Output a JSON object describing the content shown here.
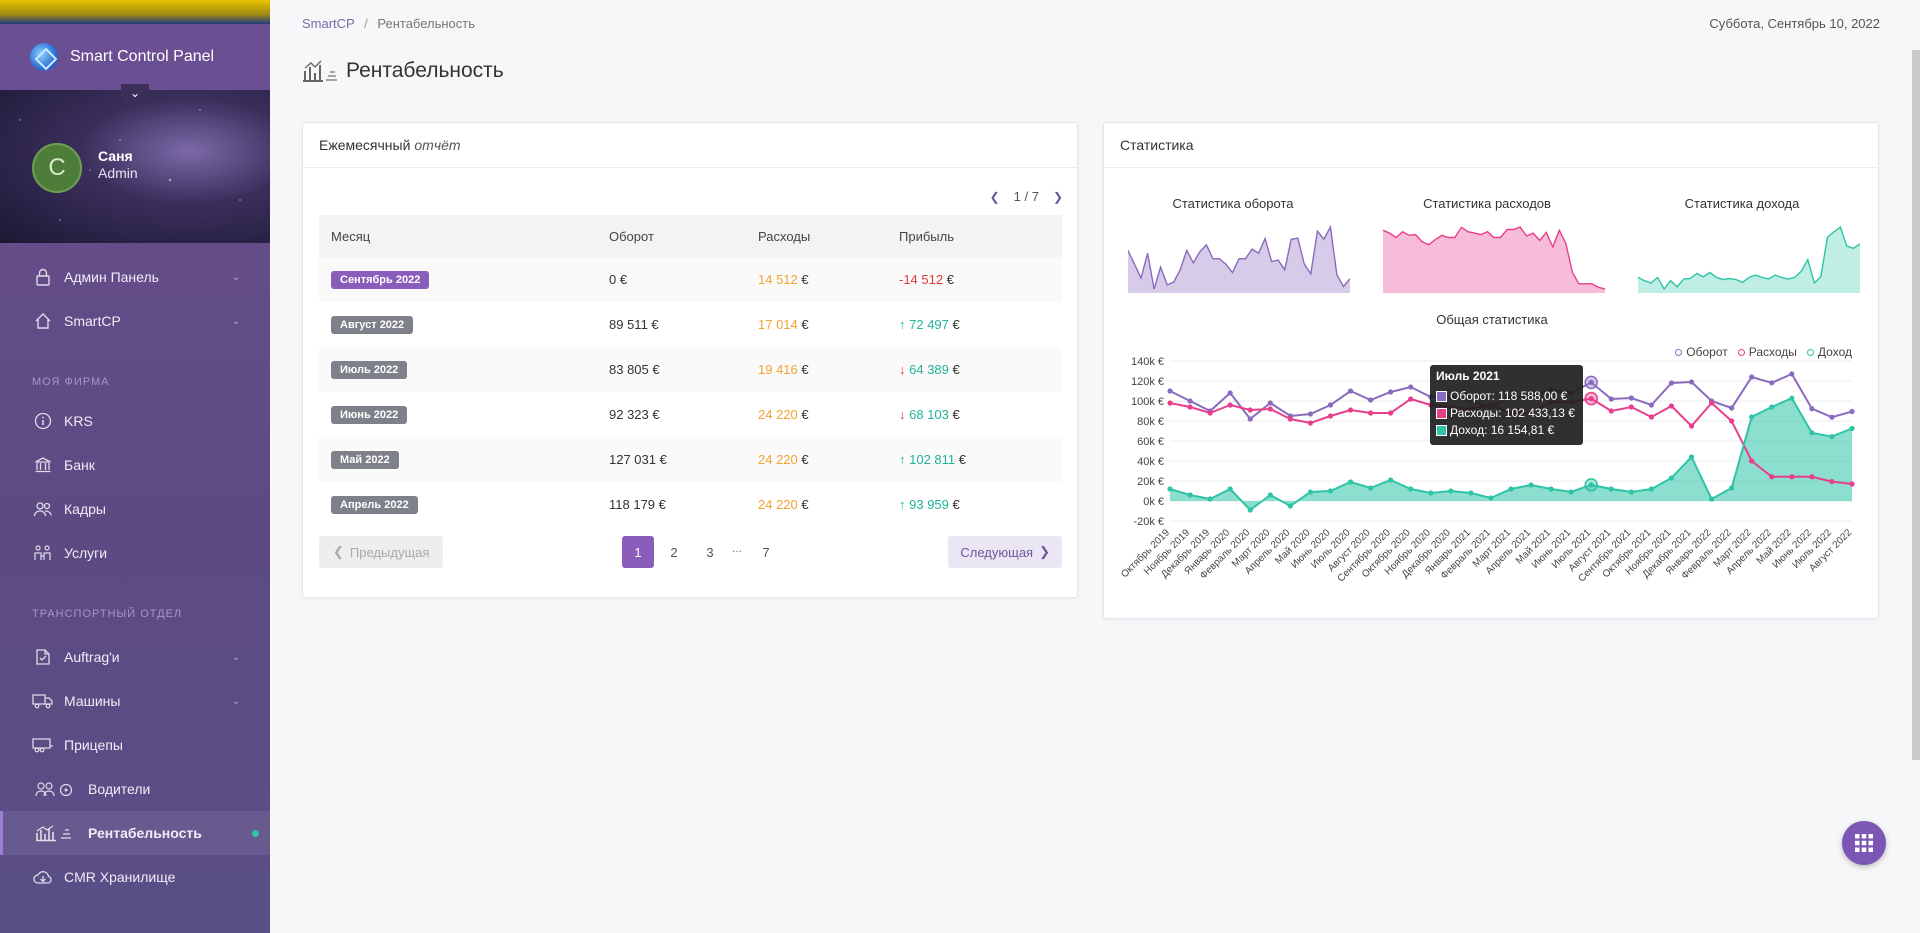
{
  "app": {
    "title": "Smart Control Panel"
  },
  "user": {
    "initial": "C",
    "name": "Саня",
    "role": "Admin"
  },
  "sidebar": {
    "items_top": [
      {
        "label": "Админ Панель",
        "icon": "lock-icon"
      },
      {
        "label": "SmartCP",
        "icon": "home-icon"
      }
    ],
    "section_company": "МОЯ ФИРМА",
    "items_company": [
      {
        "label": "KRS",
        "icon": "info-icon"
      },
      {
        "label": "Банк",
        "icon": "bank-icon"
      },
      {
        "label": "Кадры",
        "icon": "people-icon"
      },
      {
        "label": "Услуги",
        "icon": "services-icon"
      }
    ],
    "section_transport": "ТРАНСПОРТНЫЙ ОТДЕЛ",
    "items_transport": [
      {
        "label": "Auftrag'и",
        "icon": "document-icon"
      },
      {
        "label": "Машины",
        "icon": "truck-icon"
      },
      {
        "label": "Прицепы",
        "icon": "trailer-icon"
      },
      {
        "label": "Водители",
        "icon": "drivers-icon"
      },
      {
        "label": "Рентабельность",
        "icon": "profit-icon"
      },
      {
        "label": "CMR Хранилище",
        "icon": "cloud-icon"
      }
    ]
  },
  "breadcrumb": {
    "root": "SmartCP",
    "separator": "/",
    "current": "Рентабельность"
  },
  "date": "Суббота, Сентябрь 10, 2022",
  "page_title": "Рентабельность",
  "report": {
    "title": "Ежемесячный",
    "title_em": "отчёт",
    "pager": "1 / 7",
    "columns": [
      "Месяц",
      "Оборот",
      "Расходы",
      "Прибыль"
    ],
    "rows": [
      {
        "month": "Сентябрь 2022",
        "turnover": "0 €",
        "expenses": "14 512",
        "profit": "-14 512",
        "trend": ""
      },
      {
        "month": "Август 2022",
        "turnover": "89 511 €",
        "expenses": "17 014",
        "profit": "72 497",
        "trend": "up"
      },
      {
        "month": "Июль 2022",
        "turnover": "83 805 €",
        "expenses": "19 416",
        "profit": "64 389",
        "trend": "down"
      },
      {
        "month": "Июнь 2022",
        "turnover": "92 323 €",
        "expenses": "24 220",
        "profit": "68 103",
        "trend": "down"
      },
      {
        "month": "Май 2022",
        "turnover": "127 031 €",
        "expenses": "24 220",
        "profit": "102 811",
        "trend": "up"
      },
      {
        "month": "Апрель 2022",
        "turnover": "118 179 €",
        "expenses": "24 220",
        "profit": "93 959",
        "trend": "up"
      }
    ],
    "currency": "€",
    "prev_label": "Предыдущая",
    "next_label": "Следующая",
    "pages": [
      "1",
      "2",
      "3",
      "...",
      "7"
    ]
  },
  "stats": {
    "title": "Статистика",
    "mini_titles": [
      "Статистика оборота",
      "Статистика расходов",
      "Статистика дохода"
    ],
    "main_title": "Общая статистика",
    "legend": [
      "Оборот",
      "Расходы",
      "Доход"
    ],
    "tooltip": {
      "title": "Июль 2021",
      "rows": [
        "Оборот: 118 588,00 €",
        "Расходы: 102 433,13 €",
        "Доход: 16 154,81 €"
      ]
    }
  },
  "colors": {
    "turnover": "#8a6bbd",
    "expenses": "#e83e8c",
    "income": "#2ec4a6",
    "accent": "#8a5dba"
  },
  "chart_data": {
    "type": "line",
    "title": "Общая статистика",
    "ylim": [
      -20000,
      140000
    ],
    "ytick_labels": [
      "140k €",
      "120k €",
      "100k €",
      "80k €",
      "60k €",
      "40k €",
      "20k €",
      "0k €",
      "-20k €"
    ],
    "categories": [
      "Октябрь 2019",
      "Ноябрь 2019",
      "Декабрь 2019",
      "Январь 2020",
      "Февраль 2020",
      "Март 2020",
      "Апрель 2020",
      "Май 2020",
      "Июнь 2020",
      "Июль 2020",
      "Август 2020",
      "Сентябрь 2020",
      "Октябрь 2020",
      "Ноябрь 2020",
      "Декабрь 2020",
      "Январь 2021",
      "Февраль 2021",
      "Март 2021",
      "Апрель 2021",
      "Май 2021",
      "Июнь 2021",
      "Июль 2021",
      "Август 2021",
      "Сентябрь 2021",
      "Октябрь 2021",
      "Ноябрь 2021",
      "Декабрь 2021",
      "Январь 2022",
      "Февраль 2022",
      "Март 2022",
      "Апрель 2022",
      "Май 2022",
      "Июнь 2022",
      "Июль 2022",
      "Август 2022"
    ],
    "series": [
      {
        "name": "Оборот",
        "values": [
          110000,
          100000,
          90000,
          108000,
          82000,
          98000,
          85000,
          87000,
          96000,
          110000,
          101000,
          109000,
          114000,
          104000,
          104000,
          100000,
          94000,
          104000,
          104000,
          111000,
          108000,
          118588,
          102000,
          103000,
          96000,
          118000,
          119000,
          100000,
          93000,
          124000,
          118179,
          127031,
          92323,
          83805,
          89511
        ]
      },
      {
        "name": "Расходы",
        "values": [
          98000,
          94000,
          88000,
          96000,
          91000,
          92000,
          82000,
          78000,
          85000,
          91000,
          88000,
          88000,
          102000,
          96000,
          94000,
          92000,
          96000,
          88000,
          88000,
          99000,
          99000,
          102433,
          90000,
          94000,
          84000,
          95000,
          75000,
          98000,
          80000,
          40000,
          24220,
          24220,
          24220,
          19416,
          17014
        ]
      },
      {
        "name": "Доход",
        "values": [
          12000,
          6000,
          2000,
          12000,
          -9000,
          6000,
          -5000,
          9000,
          10000,
          19000,
          13000,
          21000,
          12000,
          8000,
          10000,
          8000,
          3000,
          12000,
          16000,
          12000,
          9000,
          16155,
          12000,
          9000,
          12000,
          23000,
          44000,
          2000,
          13000,
          84000,
          93959,
          102811,
          68103,
          64389,
          72497
        ]
      }
    ]
  }
}
